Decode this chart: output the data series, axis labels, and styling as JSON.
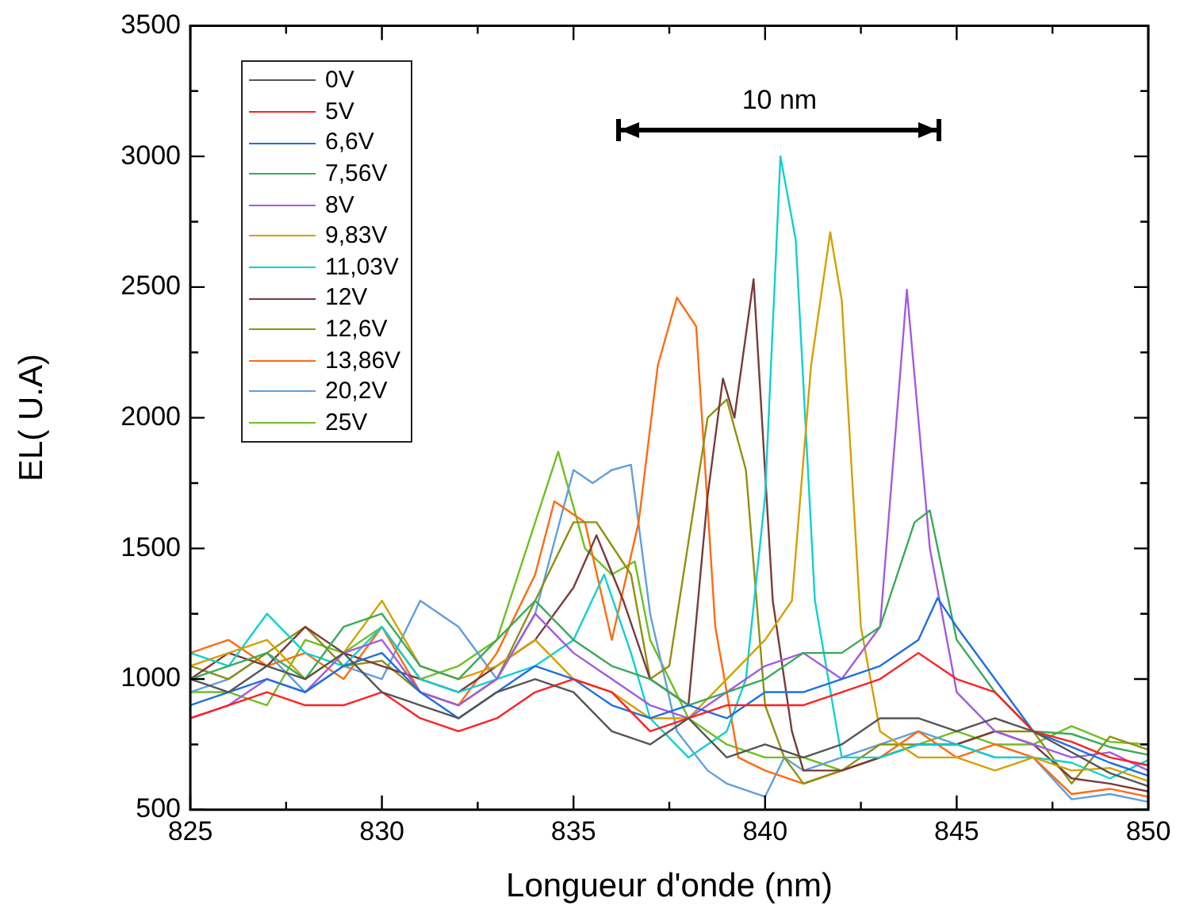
{
  "chart_data": {
    "type": "line",
    "xlabel": "Longueur d'onde (nm)",
    "ylabel": "EL( U.A)",
    "xlim": [
      825,
      850
    ],
    "ylim": [
      500,
      3500
    ],
    "xticks": [
      825,
      {
        "value": 827.5,
        "label": null
      },
      830,
      {
        "value": 832.5,
        "label": null
      },
      835,
      {
        "value": 837.5,
        "label": null
      },
      840,
      {
        "value": 842.5,
        "label": null
      },
      845,
      {
        "value": 847.5,
        "label": null
      },
      850
    ],
    "yticks": [
      500,
      {
        "value": 750,
        "label": null
      },
      1000,
      {
        "value": 1250,
        "label": null
      },
      1500,
      {
        "value": 1750,
        "label": null
      },
      2000,
      {
        "value": 2250,
        "label": null
      },
      2500,
      {
        "value": 2750,
        "label": null
      },
      3000,
      {
        "value": 3250,
        "label": null
      },
      3500
    ],
    "grid": false,
    "legend": "top left",
    "marker": "none",
    "line_style": "solid",
    "annotations": [
      "10 nm"
    ],
    "series": [
      {
        "name": "0V",
        "color": "#555555",
        "x": [
          825,
          826,
          827,
          828,
          829,
          830,
          831,
          832,
          833,
          834,
          835,
          836,
          837,
          838,
          839,
          840,
          841,
          842,
          843,
          844,
          845,
          846,
          847,
          848,
          849,
          850
        ],
        "values": [
          1000,
          950,
          1050,
          1000,
          1100,
          950,
          900,
          850,
          950,
          1000,
          950,
          800,
          750,
          850,
          700,
          750,
          700,
          750,
          850,
          850,
          800,
          850,
          800,
          720,
          640,
          590
        ]
      },
      {
        "name": "5V",
        "color": "#ff2020",
        "x": [
          825,
          826,
          827,
          828,
          829,
          830,
          831,
          832,
          833,
          834,
          835,
          836,
          837,
          838,
          839,
          840,
          841,
          842,
          843,
          844,
          845,
          846,
          847,
          848,
          849,
          850
        ],
        "values": [
          850,
          900,
          950,
          900,
          900,
          950,
          850,
          800,
          850,
          950,
          1000,
          950,
          800,
          850,
          900,
          900,
          900,
          950,
          1000,
          1100,
          1000,
          950,
          800,
          760,
          700,
          670
        ]
      },
      {
        "name": "6,6V",
        "color": "#1f6fe0",
        "x": [
          825,
          826,
          827,
          828,
          829,
          830,
          831,
          832,
          833,
          834,
          835,
          836,
          837,
          838,
          839,
          840,
          841,
          842,
          843,
          844,
          844.5,
          845,
          846,
          847,
          848,
          849,
          850
        ],
        "values": [
          900,
          950,
          1000,
          950,
          1050,
          1100,
          950,
          850,
          950,
          1050,
          1000,
          900,
          850,
          900,
          850,
          950,
          950,
          1000,
          1050,
          1150,
          1310,
          1200,
          1000,
          800,
          740,
          680,
          630
        ]
      },
      {
        "name": "7,56V",
        "color": "#3aaa5a",
        "x": [
          825,
          826,
          827,
          828,
          829,
          830,
          831,
          832,
          833,
          834,
          835,
          836,
          837,
          838,
          839,
          840,
          841,
          842,
          843,
          843.9,
          844.3,
          845,
          846,
          847,
          848,
          849,
          850
        ],
        "values": [
          1000,
          1050,
          1100,
          1000,
          1200,
          1250,
          1050,
          1000,
          1150,
          1300,
          1150,
          1050,
          1000,
          900,
          950,
          1000,
          1100,
          1100,
          1200,
          1600,
          1645,
          1150,
          950,
          800,
          790,
          740,
          710
        ]
      },
      {
        "name": "8V",
        "color": "#a35be0",
        "x": [
          825,
          826,
          827,
          828,
          829,
          830,
          831,
          832,
          833,
          834,
          835,
          836,
          837,
          838,
          839,
          840,
          841,
          842,
          843,
          843.7,
          844.3,
          845,
          846,
          847,
          848,
          849,
          850
        ],
        "values": [
          850,
          900,
          1000,
          950,
          1100,
          1150,
          950,
          900,
          1000,
          1250,
          1100,
          1000,
          900,
          850,
          950,
          1050,
          1100,
          1000,
          1200,
          2490,
          1500,
          950,
          800,
          750,
          700,
          720,
          650
        ]
      },
      {
        "name": "9,83V",
        "color": "#d4a000",
        "x": [
          825,
          826,
          827,
          828,
          829,
          830,
          831,
          832,
          833,
          834,
          835,
          836,
          837,
          838,
          839,
          840,
          840.7,
          841.2,
          841.7,
          842,
          842.5,
          843,
          844,
          845,
          846,
          847,
          848,
          849,
          850
        ],
        "values": [
          1050,
          1100,
          1150,
          1000,
          1100,
          1300,
          1050,
          1000,
          1050,
          1150,
          1000,
          950,
          850,
          850,
          1000,
          1150,
          1300,
          2200,
          2710,
          2450,
          1200,
          800,
          700,
          700,
          650,
          700,
          650,
          660,
          610
        ]
      },
      {
        "name": "11,03V",
        "color": "#10d0d0",
        "x": [
          825,
          826,
          827,
          828,
          829,
          830,
          831,
          832,
          833,
          834,
          835,
          835.8,
          836.5,
          837,
          838,
          839,
          839.5,
          840,
          840.4,
          840.8,
          841.3,
          842,
          843,
          844,
          845,
          846,
          847,
          848,
          849,
          850
        ],
        "values": [
          1100,
          1050,
          1250,
          1100,
          1050,
          1200,
          1000,
          950,
          1000,
          1050,
          1150,
          1400,
          1100,
          850,
          700,
          800,
          1000,
          1700,
          3000,
          2680,
          1300,
          700,
          700,
          750,
          750,
          700,
          700,
          680,
          620,
          690
        ]
      },
      {
        "name": "12V",
        "color": "#7a3a3a",
        "x": [
          825,
          826,
          827,
          828,
          829,
          830,
          831,
          832,
          833,
          834,
          835,
          835.6,
          836.3,
          837,
          838,
          838.5,
          838.9,
          839.2,
          839.7,
          840.2,
          840.7,
          841,
          842,
          843,
          844,
          845,
          846,
          847,
          848,
          849,
          850
        ],
        "values": [
          1000,
          1100,
          1050,
          1200,
          1100,
          1050,
          1000,
          950,
          1050,
          1150,
          1350,
          1550,
          1300,
          1000,
          900,
          1700,
          2150,
          2000,
          2530,
          1300,
          800,
          650,
          650,
          700,
          750,
          750,
          800,
          750,
          620,
          600,
          570
        ]
      },
      {
        "name": "12,6V",
        "color": "#909010",
        "x": [
          825,
          826,
          827,
          828,
          829,
          830,
          831,
          832,
          833,
          834,
          835,
          835.6,
          836.5,
          837,
          837.5,
          838.5,
          839,
          839.5,
          840,
          840.5,
          841,
          842,
          843,
          844,
          845,
          846,
          847,
          848,
          849,
          850
        ],
        "values": [
          1050,
          1000,
          1100,
          1200,
          1050,
          1070,
          950,
          900,
          1000,
          1300,
          1600,
          1600,
          1400,
          1000,
          1050,
          2000,
          2070,
          1800,
          900,
          700,
          600,
          650,
          750,
          750,
          750,
          800,
          800,
          600,
          780,
          730
        ]
      },
      {
        "name": "13,86V",
        "color": "#ff6a10",
        "x": [
          825,
          826,
          827,
          828,
          829,
          830,
          831,
          832,
          833,
          834,
          834.5,
          835.3,
          836,
          836.7,
          837.2,
          837.7,
          838.2,
          838.7,
          839.3,
          840,
          841,
          842,
          843,
          844,
          845,
          846,
          847,
          848,
          849,
          850
        ],
        "values": [
          1100,
          1150,
          1050,
          1100,
          1000,
          1200,
          950,
          900,
          1100,
          1400,
          1680,
          1600,
          1150,
          1600,
          2200,
          2460,
          2350,
          1200,
          700,
          650,
          600,
          650,
          700,
          800,
          700,
          750,
          700,
          560,
          580,
          550
        ]
      },
      {
        "name": "20,2V",
        "color": "#5f9fdf",
        "x": [
          825,
          826,
          827,
          828,
          829,
          830,
          831,
          832,
          833,
          834,
          835,
          835.5,
          836,
          836.5,
          837,
          837.7,
          838.5,
          839,
          840,
          840.5,
          841,
          842,
          843,
          844,
          845,
          846,
          847,
          848,
          849,
          850
        ],
        "values": [
          950,
          1000,
          1100,
          950,
          1050,
          1000,
          1300,
          1200,
          1000,
          1250,
          1800,
          1750,
          1800,
          1820,
          1250,
          800,
          650,
          600,
          550,
          700,
          650,
          700,
          750,
          800,
          750,
          700,
          700,
          540,
          560,
          530
        ]
      },
      {
        "name": "25V",
        "color": "#6fbf20",
        "x": [
          825,
          826,
          827,
          828,
          829,
          830,
          831,
          832,
          833,
          834,
          834.6,
          835.3,
          836,
          836.6,
          837,
          838,
          839,
          840,
          841,
          842,
          843,
          844,
          845,
          846,
          847,
          848,
          849,
          850
        ],
        "values": [
          950,
          950,
          900,
          1150,
          1100,
          1200,
          1000,
          1050,
          1150,
          1600,
          1870,
          1500,
          1400,
          1450,
          1150,
          850,
          750,
          700,
          700,
          650,
          700,
          750,
          800,
          750,
          750,
          820,
          760,
          750
        ]
      }
    ]
  }
}
